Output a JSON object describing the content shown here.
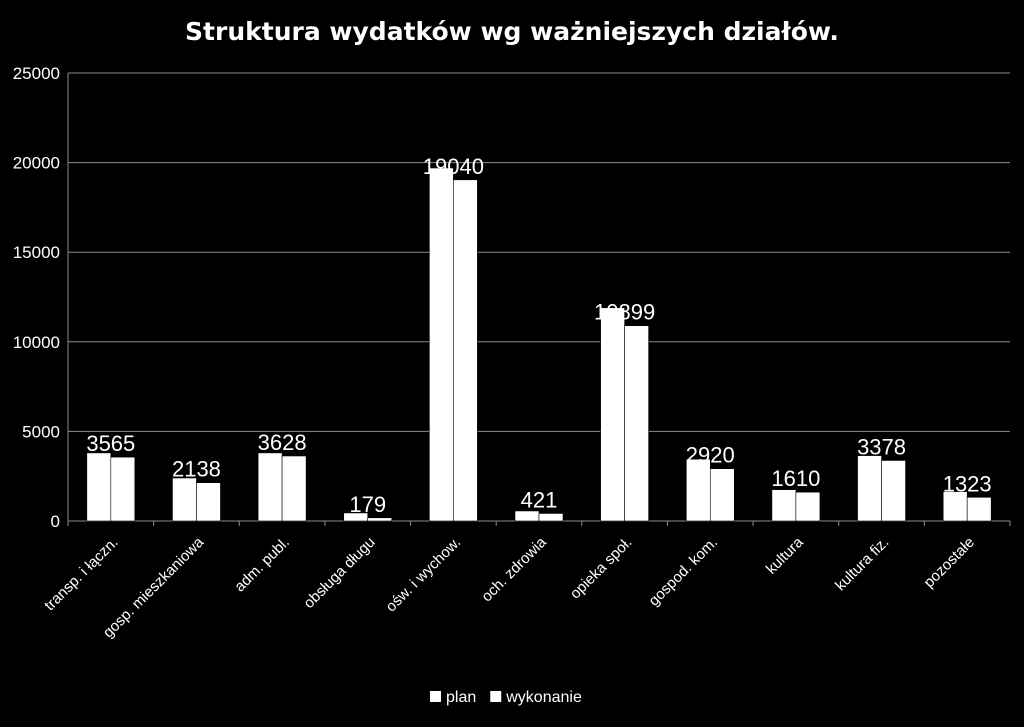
{
  "chart_data": {
    "type": "bar",
    "title": "Struktura wydatków wg ważniejszych działów.",
    "xlabel": "",
    "ylabel": "",
    "ylim": [
      0,
      25000
    ],
    "yticks": [
      "0",
      "5000",
      "10000",
      "15000",
      "20000",
      "25000"
    ],
    "grid": true,
    "legend_position": "bottom",
    "categories": [
      "transp. i łączn.",
      "gosp. mieszkaniowa",
      "adm. publ.",
      "obsługa długu",
      "ośw. i wychow.",
      "och. zdrowia",
      "opieka społ.",
      "gospod. kom.",
      "kultura",
      "kultura fiz.",
      "pozostałe"
    ],
    "series": [
      {
        "name": "plan",
        "color": "#ffffff",
        "values": [
          3800,
          2400,
          3800,
          450,
          19700,
          560,
          11900,
          3450,
          1750,
          3650,
          1640
        ]
      },
      {
        "name": "wykonanie",
        "color": "#ffffff",
        "values": [
          3565,
          2138,
          3628,
          179,
          19040,
          421,
          10899,
          2920,
          1610,
          3378,
          1323
        ]
      }
    ],
    "data_labels": [
      "3565",
      "2138",
      "3628",
      "179",
      "19040",
      "421",
      "10899",
      "2920",
      "1610",
      "3378",
      "1323"
    ]
  }
}
